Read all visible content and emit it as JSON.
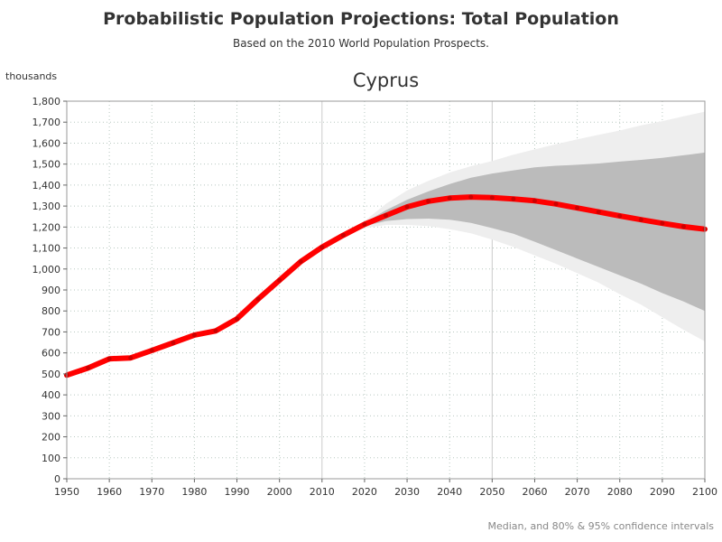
{
  "header": {
    "title": "Probabilistic Population Projections: Total Population",
    "subtitle": "Based on the 2010 World Population Prospects."
  },
  "footer": {
    "note": "Median, and 80% & 95% confidence intervals"
  },
  "chart_data": {
    "type": "line",
    "title": "Cyprus",
    "ylabel": "thousands",
    "xlabel": "",
    "xlim": [
      1950,
      2100
    ],
    "ylim": [
      0,
      1800
    ],
    "x_ticks": [
      1950,
      1960,
      1970,
      1980,
      1990,
      2000,
      2010,
      2020,
      2030,
      2040,
      2050,
      2060,
      2070,
      2080,
      2090,
      2100
    ],
    "y_ticks": [
      0,
      100,
      200,
      300,
      400,
      500,
      600,
      700,
      800,
      900,
      1000,
      1100,
      1200,
      1300,
      1400,
      1500,
      1600,
      1700,
      1800
    ],
    "y_tick_labels": [
      "0",
      "100",
      "200",
      "300",
      "400",
      "500",
      "600",
      "700",
      "800",
      "900",
      "1,000",
      "1,100",
      "1,200",
      "1,300",
      "1,400",
      "1,500",
      "1,600",
      "1,700",
      "1,800"
    ],
    "grid": true,
    "highlighted_gridlines_x": [
      2010,
      2050
    ],
    "series": [
      {
        "role": "median",
        "color": "#ff0000",
        "x": [
          1950,
          1955,
          1960,
          1965,
          1970,
          1975,
          1980,
          1985,
          1990,
          1995,
          2000,
          2005,
          2010,
          2015,
          2020,
          2025,
          2030,
          2035,
          2040,
          2045,
          2050,
          2055,
          2060,
          2065,
          2070,
          2075,
          2080,
          2085,
          2090,
          2095,
          2100
        ],
        "values": [
          494,
          528,
          572,
          576,
          612,
          648,
          685,
          705,
          762,
          857,
          946,
          1035,
          1104,
          1161,
          1213,
          1255,
          1296,
          1323,
          1338,
          1343,
          1340,
          1334,
          1325,
          1310,
          1291,
          1272,
          1253,
          1235,
          1218,
          1202,
          1190
        ]
      },
      {
        "role": "80% interval",
        "color": "#bbbbbb",
        "x": [
          2010,
          2015,
          2020,
          2025,
          2030,
          2035,
          2040,
          2045,
          2050,
          2055,
          2060,
          2065,
          2070,
          2075,
          2080,
          2085,
          2090,
          2095,
          2100
        ],
        "upper": [
          1104,
          1161,
          1220,
          1280,
          1330,
          1370,
          1405,
          1435,
          1455,
          1470,
          1485,
          1492,
          1497,
          1503,
          1512,
          1520,
          1530,
          1542,
          1555
        ],
        "lower": [
          1104,
          1161,
          1205,
          1228,
          1238,
          1240,
          1235,
          1220,
          1195,
          1168,
          1130,
          1090,
          1050,
          1010,
          970,
          930,
          885,
          845,
          800
        ]
      },
      {
        "role": "95% interval",
        "color": "#eeeeee",
        "x": [
          2010,
          2015,
          2020,
          2025,
          2030,
          2035,
          2040,
          2045,
          2050,
          2055,
          2060,
          2065,
          2070,
          2075,
          2080,
          2085,
          2090,
          2095,
          2100
        ],
        "upper": [
          1104,
          1161,
          1228,
          1310,
          1375,
          1420,
          1460,
          1490,
          1515,
          1545,
          1570,
          1595,
          1618,
          1640,
          1660,
          1685,
          1705,
          1728,
          1750
        ],
        "lower": [
          1104,
          1161,
          1195,
          1210,
          1210,
          1205,
          1190,
          1170,
          1140,
          1105,
          1065,
          1025,
          980,
          935,
          880,
          830,
          770,
          710,
          655
        ]
      }
    ]
  }
}
